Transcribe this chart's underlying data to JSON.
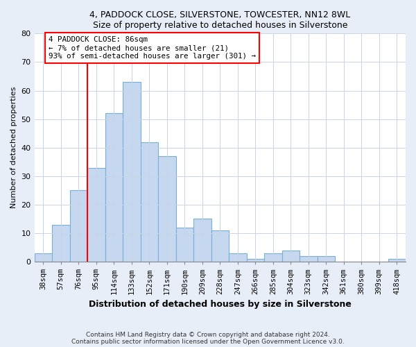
{
  "title1": "4, PADDOCK CLOSE, SILVERSTONE, TOWCESTER, NN12 8WL",
  "title2": "Size of property relative to detached houses in Silverstone",
  "xlabel": "Distribution of detached houses by size in Silverstone",
  "ylabel": "Number of detached properties",
  "categories": [
    "38sqm",
    "57sqm",
    "76sqm",
    "95sqm",
    "114sqm",
    "133sqm",
    "152sqm",
    "171sqm",
    "190sqm",
    "209sqm",
    "228sqm",
    "247sqm",
    "266sqm",
    "285sqm",
    "304sqm",
    "323sqm",
    "342sqm",
    "361sqm",
    "380sqm",
    "399sqm",
    "418sqm"
  ],
  "values": [
    3,
    13,
    25,
    33,
    52,
    63,
    42,
    37,
    12,
    15,
    11,
    3,
    1,
    3,
    4,
    2,
    2,
    0,
    0,
    0,
    1
  ],
  "bar_color": "#c5d8f0",
  "bar_edge_color": "#7aaed6",
  "ref_line_label": "4 PADDOCK CLOSE: 86sqm",
  "annotation_line1": "← 7% of detached houses are smaller (21)",
  "annotation_line2": "93% of semi-detached houses are larger (301) →",
  "ylim": [
    0,
    80
  ],
  "yticks": [
    0,
    10,
    20,
    30,
    40,
    50,
    60,
    70,
    80
  ],
  "footnote1": "Contains HM Land Registry data © Crown copyright and database right 2024.",
  "footnote2": "Contains public sector information licensed under the Open Government Licence v3.0.",
  "bg_color": "#e8eef8",
  "plot_bg_color": "#ffffff",
  "grid_color": "#c8d4e8"
}
